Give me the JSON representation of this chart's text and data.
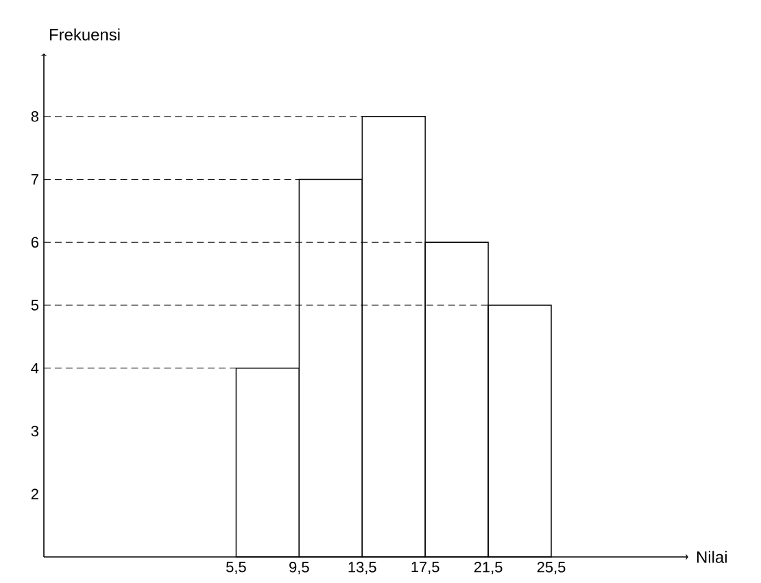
{
  "chart_data": {
    "type": "histogram",
    "xlabel": "Nilai",
    "ylabel": "Frekuensi",
    "bins": [
      5.5,
      9.5,
      13.5,
      17.5,
      21.5,
      25.5
    ],
    "values": [
      4,
      7,
      8,
      6,
      5
    ],
    "color": "#000000",
    "xlim": [
      -6.7,
      34.2
    ],
    "ylim": [
      1,
      9
    ],
    "xticks": [
      {
        "value": 5.5,
        "label": "5,5"
      },
      {
        "value": 9.5,
        "label": "9,5"
      },
      {
        "value": 13.5,
        "label": "13,5"
      },
      {
        "value": 17.5,
        "label": "17,5"
      },
      {
        "value": 21.5,
        "label": "21,5"
      },
      {
        "value": 25.5,
        "label": "25,5"
      }
    ],
    "yticks": [
      2,
      3,
      4,
      5,
      6,
      7,
      8
    ],
    "ref_lines": [
      {
        "axis": "y",
        "value": 4,
        "line_style": "dashed",
        "color": "#000000"
      },
      {
        "axis": "y",
        "value": 5,
        "line_style": "dashed",
        "color": "#000000"
      },
      {
        "axis": "y",
        "value": 6,
        "line_style": "dashed",
        "color": "#000000"
      },
      {
        "axis": "y",
        "value": 7,
        "line_style": "dashed",
        "color": "#000000"
      },
      {
        "axis": "y",
        "value": 8,
        "line_style": "dashed",
        "color": "#000000"
      }
    ]
  }
}
